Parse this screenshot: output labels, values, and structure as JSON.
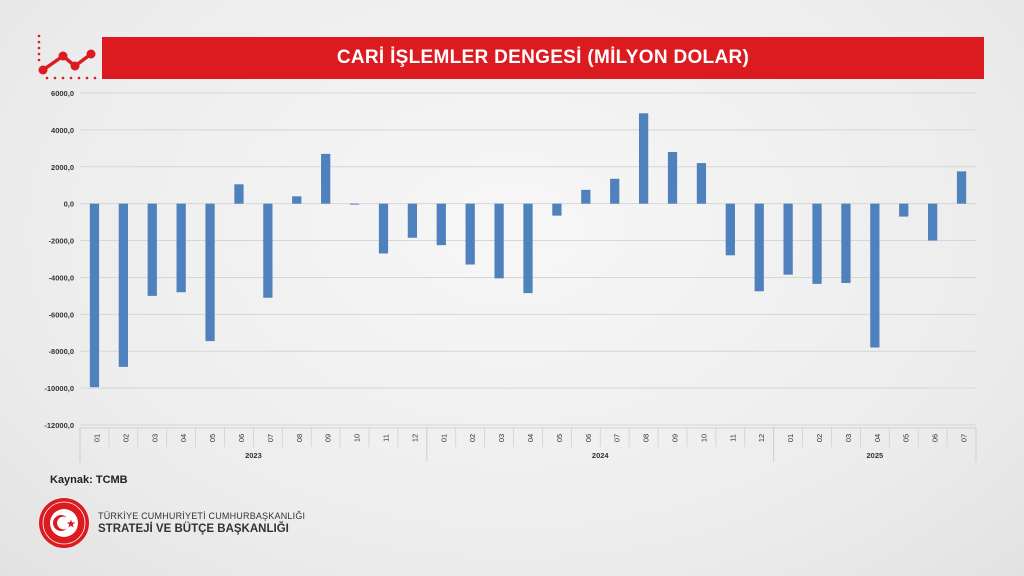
{
  "title": "CARİ İŞLEMLER DENGESİ (MİLYON DOLAR)",
  "source": "Kaynak: TCMB",
  "org": {
    "line1": "TÜRKİYE CUMHURİYETİ CUMHURBAŞKANLIĞI",
    "line2": "STRATEJİ VE BÜTÇE BAŞKANLIĞI",
    "seal_text": "T.C. CUMHURBAŞKANLIĞI STRATEJİ VE BÜTÇE BAŞKANLIĞI"
  },
  "colors": {
    "bar": "#4f81bd",
    "title_bg": "#dc1b21",
    "accent": "#dc1b21"
  },
  "icons": {
    "header": "line-chart-icon",
    "seal": "crescent-star-seal-icon"
  },
  "chart_data": {
    "type": "bar",
    "title": "CARİ İŞLEMLER DENGESİ (MİLYON DOLAR)",
    "ylim": [
      -12000,
      6000
    ],
    "yticks": [
      6000,
      4000,
      2000,
      0,
      -2000,
      -4000,
      -6000,
      -8000,
      -10000,
      -12000
    ],
    "ytick_labels": [
      "6000,0",
      "4000,0",
      "2000,0",
      "0,0",
      "-2000,0",
      "-4000,0",
      "-6000,0",
      "-8000,0",
      "-10000,0",
      "-12000,0"
    ],
    "grid": true,
    "legend": "none",
    "groups": [
      {
        "label": "2023",
        "months": [
          "01",
          "02",
          "03",
          "04",
          "05",
          "06",
          "07",
          "08",
          "09",
          "10",
          "11",
          "12"
        ],
        "values": [
          -9950,
          -8850,
          -5000,
          -4800,
          -7450,
          1050,
          -5100,
          400,
          2700,
          -50,
          -2700,
          -1850
        ]
      },
      {
        "label": "2024",
        "months": [
          "01",
          "02",
          "03",
          "04",
          "05",
          "06",
          "07",
          "08",
          "09",
          "10",
          "11",
          "12"
        ],
        "values": [
          -2250,
          -3300,
          -4050,
          -4850,
          -650,
          750,
          1350,
          4900,
          2800,
          2200,
          -2800,
          -4750
        ]
      },
      {
        "label": "2025",
        "months": [
          "01",
          "02",
          "03",
          "04",
          "05",
          "06",
          "07"
        ],
        "values": [
          -3850,
          -4350,
          -4300,
          -7800,
          -700,
          -2000,
          1750
        ]
      }
    ]
  }
}
